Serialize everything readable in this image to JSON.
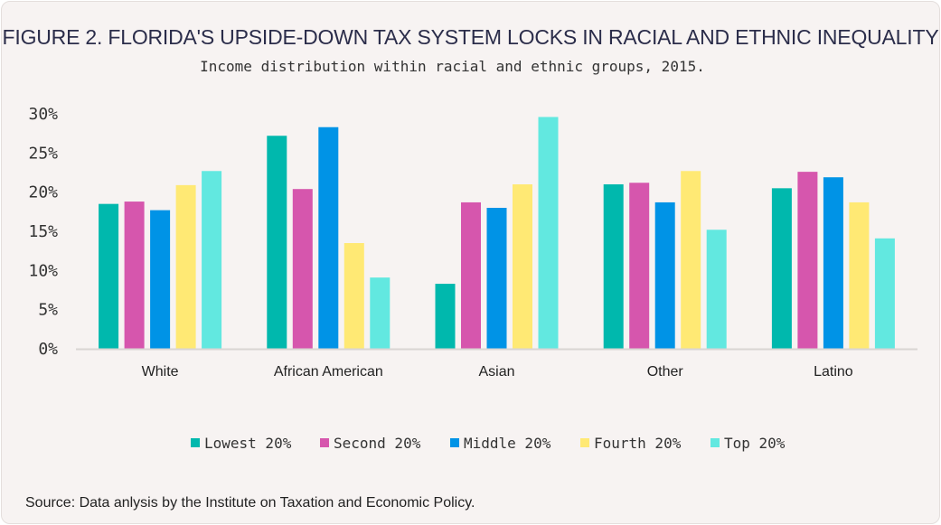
{
  "chart_data": {
    "type": "bar",
    "title": "FIGURE 2. FLORIDA'S UPSIDE-DOWN TAX SYSTEM LOCKS IN RACIAL AND ETHNIC INEQUALITY",
    "subtitle": "Income distribution within racial and ethnic groups, 2015.",
    "source": "Source: Data anlysis by the Institute on Taxation and Economic Policy.",
    "categories": [
      "White",
      "African American",
      "Asian",
      "Other",
      "Latino"
    ],
    "ylim": [
      0,
      30
    ],
    "yticks": [
      "0%",
      "5%",
      "10%",
      "15%",
      "20%",
      "25%",
      "30%"
    ],
    "ytick_values": [
      0,
      5,
      10,
      15,
      20,
      25,
      30
    ],
    "grid": false,
    "legend_position": "bottom",
    "series": [
      {
        "name": "Lowest 20%",
        "color": "#00b8ad",
        "values": [
          18.5,
          27.2,
          8.3,
          21.0,
          20.5
        ]
      },
      {
        "name": "Second 20%",
        "color": "#d656ad",
        "values": [
          18.8,
          20.4,
          18.7,
          21.2,
          22.6
        ]
      },
      {
        "name": "Middle 20%",
        "color": "#0093e6",
        "values": [
          17.7,
          28.3,
          18.0,
          18.7,
          21.9
        ]
      },
      {
        "name": "Fourth 20%",
        "color": "#ffe974",
        "values": [
          20.9,
          13.5,
          21.0,
          22.7,
          18.7
        ]
      },
      {
        "name": "Top 20%",
        "color": "#62e8e0",
        "values": [
          22.7,
          9.1,
          29.6,
          15.2,
          14.1
        ]
      }
    ]
  }
}
